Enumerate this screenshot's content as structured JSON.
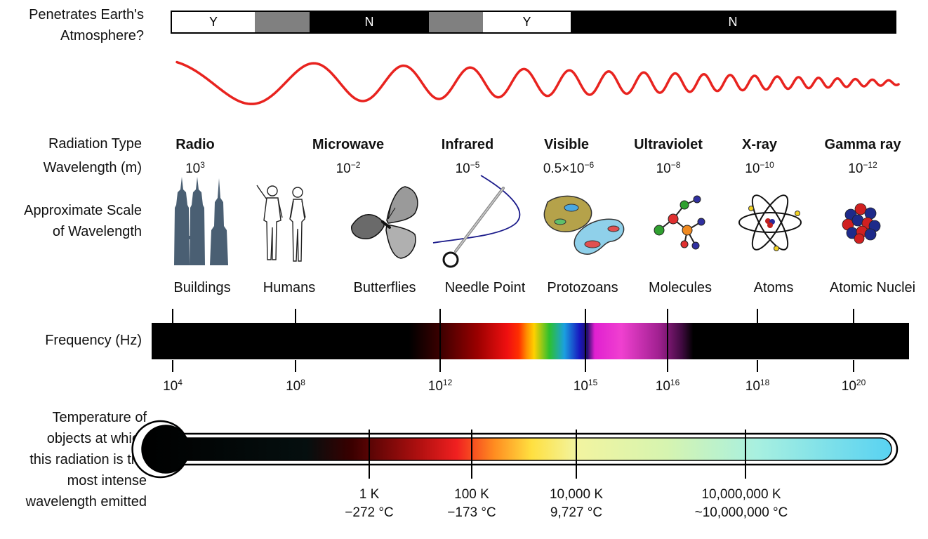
{
  "labels": {
    "atmosphere": [
      "Penetrates Earth's",
      "Atmosphere?"
    ],
    "radiation_type": "Radiation Type",
    "wavelength": "Wavelength (m)",
    "scale": [
      "Approximate Scale",
      "of Wavelength"
    ],
    "frequency": "Frequency (Hz)",
    "temperature": [
      "Temperature of",
      "objects at which",
      "this radiation is the",
      "most intense",
      "wavelength emitted"
    ]
  },
  "atmosphere_bar": {
    "segments": [
      {
        "text": "Y",
        "fill": "#ffffff"
      },
      {
        "text": "",
        "fill": "#808080"
      },
      {
        "text": "N",
        "fill": "#000000"
      },
      {
        "text": "",
        "fill": "#808080"
      },
      {
        "text": "Y",
        "fill": "#ffffff"
      },
      {
        "text": "N",
        "fill": "#000000"
      }
    ]
  },
  "radiation": [
    {
      "name": "Radio",
      "base": "10",
      "exp": "3",
      "scale": "Buildings",
      "icon": "buildings-icon"
    },
    {
      "name": "",
      "base": "",
      "exp": "",
      "scale": "Humans",
      "icon": "humans-icon"
    },
    {
      "name": "Microwave",
      "base": "10",
      "exp": "−2",
      "scale": "Butterflies",
      "icon": "butterfly-icon"
    },
    {
      "name": "Infrared",
      "base": "10",
      "exp": "−5",
      "scale": "Needle Point",
      "icon": "needle-icon"
    },
    {
      "name": "Visible",
      "base": "0.5×10",
      "exp": "−6",
      "scale": "Protozoans",
      "icon": "protozoans-icon"
    },
    {
      "name": "Ultraviolet",
      "base": "10",
      "exp": "−8",
      "scale": "Molecules",
      "icon": "molecule-icon"
    },
    {
      "name": "X-ray",
      "base": "10",
      "exp": "−10",
      "scale": "Atoms",
      "icon": "atom-icon"
    },
    {
      "name": "Gamma ray",
      "base": "10",
      "exp": "−12",
      "scale": "Atomic Nuclei",
      "icon": "nucleus-icon"
    }
  ],
  "frequency_ticks": [
    {
      "base": "10",
      "exp": "4"
    },
    {
      "base": "10",
      "exp": "8"
    },
    {
      "base": "10",
      "exp": "12"
    },
    {
      "base": "10",
      "exp": "15"
    },
    {
      "base": "10",
      "exp": "16"
    },
    {
      "base": "10",
      "exp": "18"
    },
    {
      "base": "10",
      "exp": "20"
    }
  ],
  "temperatures": [
    {
      "kelvin": "1 K",
      "celsius": "−272 °C"
    },
    {
      "kelvin": "100 K",
      "celsius": "−173 °C"
    },
    {
      "kelvin": "10,000 K",
      "celsius": "9,727 °C"
    },
    {
      "kelvin": "10,000,000 K",
      "celsius": "~10,000,000 °C"
    }
  ],
  "colors": {
    "wave": "#e8231f",
    "icon_slate": "#4a5f73",
    "thermo_cool": "#5bd0f0"
  }
}
